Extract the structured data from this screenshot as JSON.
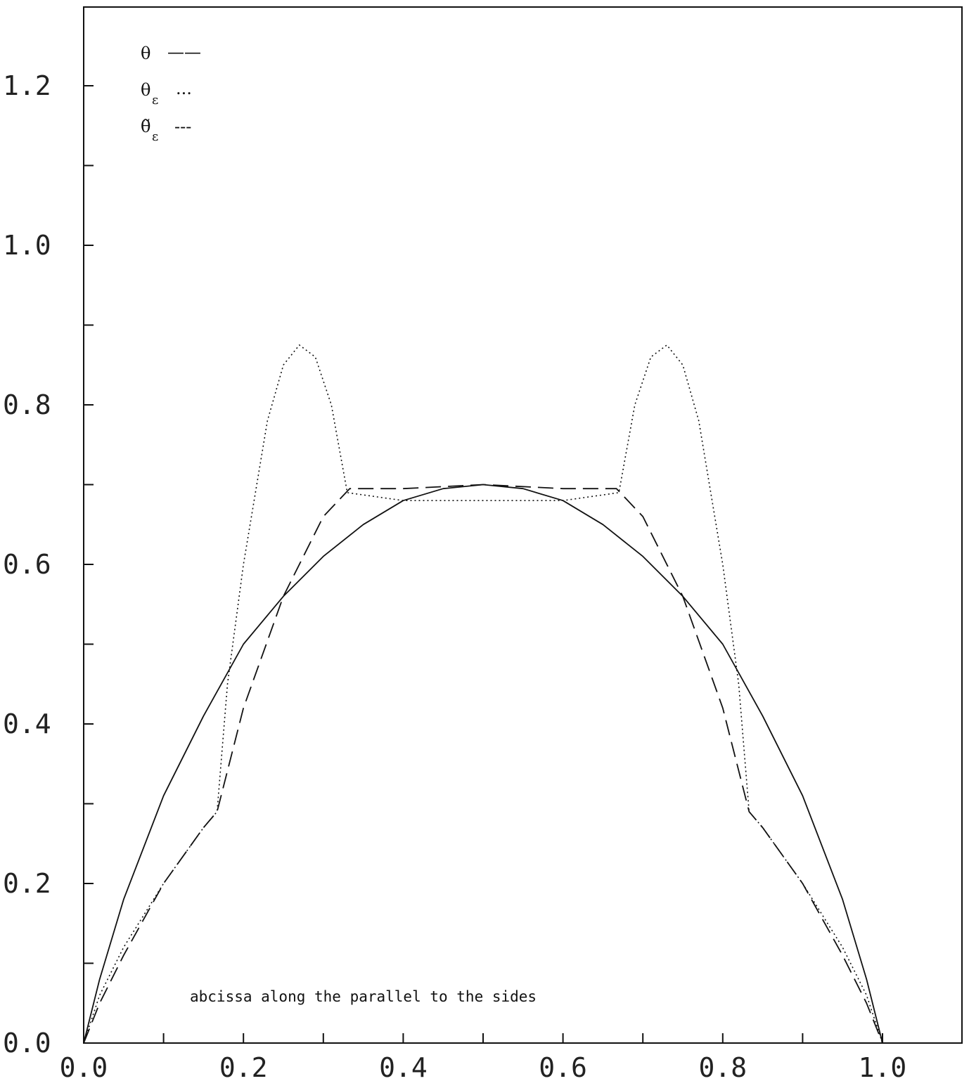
{
  "chart_data": {
    "type": "line",
    "title": "",
    "xlabel": "",
    "ylabel": "",
    "xlim": [
      0,
      1.1
    ],
    "ylim": [
      0,
      1.3
    ],
    "x_ticks": [
      0,
      0.1,
      0.2,
      0.3,
      0.4,
      0.5,
      0.6,
      0.7,
      0.8,
      0.9,
      1.0,
      1.1
    ],
    "x_tick_labels": [
      {
        "value": 0,
        "label": "0.0"
      },
      {
        "value": 0.2,
        "label": "0.2"
      },
      {
        "value": 0.4,
        "label": "0.4"
      },
      {
        "value": 0.6,
        "label": "0.6"
      },
      {
        "value": 0.8,
        "label": "0.8"
      },
      {
        "value": 1.0,
        "label": "1.0"
      }
    ],
    "y_ticks": [
      0,
      0.1,
      0.2,
      0.3,
      0.4,
      0.5,
      0.6,
      0.7,
      0.8,
      0.9,
      1.0,
      1.1,
      1.2
    ],
    "y_tick_labels": [
      {
        "value": 0,
        "label": "0.0"
      },
      {
        "value": 0.2,
        "label": "0.2"
      },
      {
        "value": 0.4,
        "label": "0.4"
      },
      {
        "value": 0.6,
        "label": "0.6"
      },
      {
        "value": 0.8,
        "label": "0.8"
      },
      {
        "value": 1.0,
        "label": "1.0"
      },
      {
        "value": 1.2,
        "label": "1.2"
      }
    ],
    "grid": false,
    "legend_position": "top-left",
    "legend": [
      {
        "symbol": "θ",
        "subscript": "",
        "style": "solid",
        "sample": "——"
      },
      {
        "symbol": "θ",
        "subscript": "ε",
        "style": "dotted",
        "sample": "..."
      },
      {
        "symbol": "θ̃",
        "subscript": "ε",
        "style": "dashed",
        "sample": "---"
      }
    ],
    "annotation": "abcissa along the parallel to the sides",
    "series": [
      {
        "style": "solid",
        "x": [
          0,
          0.02,
          0.05,
          0.1,
          0.15,
          0.2,
          0.25,
          0.3,
          0.35,
          0.4,
          0.45,
          0.5,
          0.55,
          0.6,
          0.65,
          0.7,
          0.75,
          0.8,
          0.85,
          0.9,
          0.95,
          0.98,
          1.0
        ],
        "y": [
          0,
          0.08,
          0.18,
          0.31,
          0.41,
          0.5,
          0.56,
          0.61,
          0.65,
          0.68,
          0.695,
          0.7,
          0.695,
          0.68,
          0.65,
          0.61,
          0.56,
          0.5,
          0.41,
          0.31,
          0.18,
          0.08,
          0
        ]
      },
      {
        "style": "dotted",
        "x": [
          0,
          0.02,
          0.05,
          0.1,
          0.15,
          0.167,
          0.18,
          0.2,
          0.23,
          0.25,
          0.27,
          0.29,
          0.31,
          0.33,
          0.4,
          0.5,
          0.6,
          0.67,
          0.69,
          0.71,
          0.73,
          0.75,
          0.77,
          0.8,
          0.82,
          0.833,
          0.85,
          0.9,
          0.95,
          0.98,
          1.0
        ],
        "y": [
          0,
          0.06,
          0.12,
          0.2,
          0.27,
          0.29,
          0.45,
          0.6,
          0.78,
          0.85,
          0.875,
          0.86,
          0.8,
          0.69,
          0.68,
          0.68,
          0.68,
          0.69,
          0.8,
          0.86,
          0.875,
          0.85,
          0.78,
          0.6,
          0.45,
          0.29,
          0.27,
          0.2,
          0.12,
          0.06,
          0
        ]
      },
      {
        "style": "dashed",
        "x": [
          0,
          0.02,
          0.05,
          0.1,
          0.15,
          0.167,
          0.2,
          0.25,
          0.3,
          0.333,
          0.4,
          0.5,
          0.6,
          0.667,
          0.7,
          0.75,
          0.8,
          0.833,
          0.85,
          0.9,
          0.95,
          0.98,
          1.0
        ],
        "y": [
          0,
          0.05,
          0.11,
          0.2,
          0.27,
          0.29,
          0.42,
          0.56,
          0.66,
          0.695,
          0.695,
          0.7,
          0.695,
          0.695,
          0.66,
          0.56,
          0.42,
          0.29,
          0.27,
          0.2,
          0.11,
          0.05,
          0
        ]
      }
    ]
  }
}
